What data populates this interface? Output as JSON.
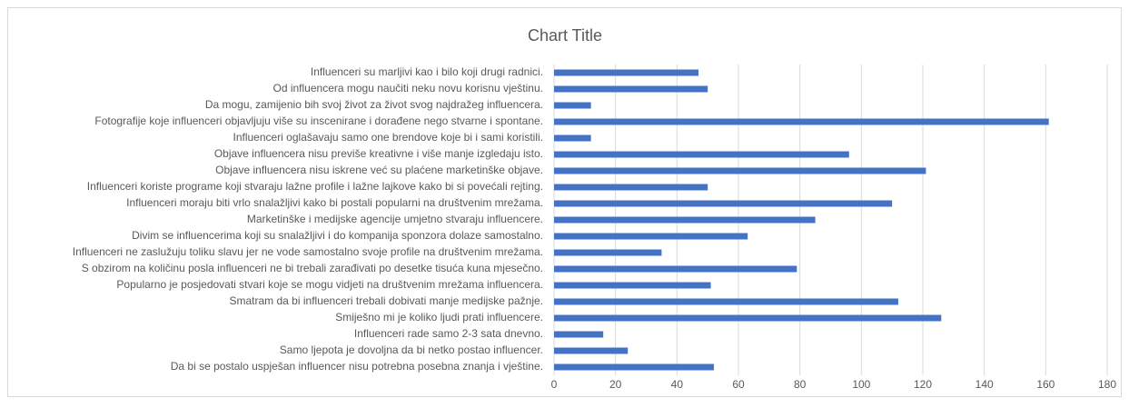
{
  "chart_data": {
    "type": "bar",
    "orientation": "horizontal",
    "title": "Chart Title",
    "categories": [
      "Influenceri su marljivi kao i bilo koji drugi radnici.",
      "Od influencera mogu naučiti neku novu korisnu vještinu.",
      "Da mogu, zamijenio bih svoj život za život svog najdražeg influencera.",
      "Fotografije koje influenceri objavljuju više su inscenirane i dorađene nego stvarne i spontane.",
      "Influenceri oglašavaju samo one brendove koje bi i sami koristili.",
      "Objave influencera nisu previše kreativne i više manje izgledaju isto.",
      "Objave influencera nisu iskrene već su plaćene marketinške objave.",
      "Influenceri koriste programe koji stvaraju lažne profile i lažne lajkove kako bi si povećali rejting.",
      "Influenceri moraju biti vrlo snalažljivi kako bi postali popularni na društvenim mrežama.",
      "Marketinške i medijske agencije umjetno stvaraju influencere.",
      "Divim se influencerima koji su snalažljivi i do kompanija sponzora dolaze samostalno.",
      "Influenceri ne zaslužuju toliku slavu jer ne vode samostalno svoje profile na društvenim mrežama.",
      "S obzirom na količinu posla influenceri ne bi trebali zarađivati po desetke tisuća kuna mjesečno.",
      "Popularno je posjedovati stvari koje se mogu vidjeti na društvenim mrežama influencera.",
      "Smatram da bi influenceri trebali dobivati manje medijske pažnje.",
      "Smiješno mi je koliko ljudi prati influencere.",
      "Influenceri rade samo 2-3 sata dnevno.",
      "Samo ljepota je dovoljna da bi netko postao influencer.",
      "Da bi se postalo uspješan influencer nisu potrebna posebna znanja i vještine."
    ],
    "values": [
      47,
      50,
      12,
      161,
      12,
      96,
      121,
      50,
      110,
      85,
      63,
      35,
      79,
      51,
      112,
      126,
      16,
      24,
      52
    ],
    "color": "#4472c4",
    "xlim": [
      0,
      180
    ],
    "xticks": [
      0,
      20,
      40,
      60,
      80,
      100,
      120,
      140,
      160,
      180
    ],
    "grid": true
  }
}
